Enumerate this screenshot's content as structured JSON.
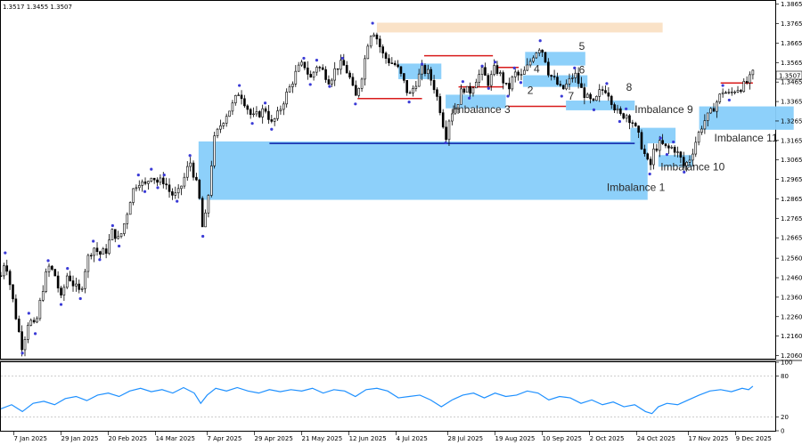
{
  "chart_data": {
    "type": "candlestick",
    "header_values": "1.3517 1.3455 1.3507",
    "current_price": 1.3507,
    "current_price_label": "1.3507",
    "price_axis": {
      "ylim": [
        1.2044,
        1.3882
      ],
      "ticks": [
        "1.3865",
        "1.3765",
        "1.3665",
        "1.3565",
        "1.3465",
        "1.3365",
        "1.3265",
        "1.3165",
        "1.3065",
        "1.2965",
        "1.2865",
        "1.2765",
        "1.2665",
        "1.2560",
        "1.2460",
        "1.2360",
        "1.2260",
        "1.2160",
        "1.2060"
      ]
    },
    "time_axis": {
      "labels": [
        "7 Jan 2025",
        "29 Jan 2025",
        "20 Feb 2025",
        "14 Mar 2025",
        "7 Apr 2025",
        "29 Apr 2025",
        "21 May 2025",
        "12 Jun 2025",
        "4 Jul 2025",
        "28 Jul 2025",
        "19 Aug 2025",
        "10 Sep 2025",
        "2 Oct 2025",
        "24 Oct 2025",
        "17 Nov 2025",
        "9 Dec 2025"
      ],
      "label_days": [
        6,
        28,
        50,
        72,
        96,
        118,
        140,
        162,
        184,
        208,
        230,
        252,
        274,
        296,
        320,
        342
      ],
      "day_range": [
        0,
        360
      ]
    },
    "price_path": [
      [
        0,
        1.247
      ],
      [
        2,
        1.256
      ],
      [
        5,
        1.238
      ],
      [
        8,
        1.22
      ],
      [
        10,
        1.21
      ],
      [
        13,
        1.225
      ],
      [
        16,
        1.22
      ],
      [
        19,
        1.238
      ],
      [
        22,
        1.252
      ],
      [
        25,
        1.248
      ],
      [
        28,
        1.235
      ],
      [
        31,
        1.248
      ],
      [
        34,
        1.242
      ],
      [
        37,
        1.238
      ],
      [
        40,
        1.255
      ],
      [
        43,
        1.262
      ],
      [
        46,
        1.258
      ],
      [
        49,
        1.26
      ],
      [
        52,
        1.27
      ],
      [
        55,
        1.265
      ],
      [
        58,
        1.276
      ],
      [
        61,
        1.29
      ],
      [
        64,
        1.296
      ],
      [
        67,
        1.293
      ],
      [
        70,
        1.299
      ],
      [
        73,
        1.295
      ],
      [
        76,
        1.296
      ],
      [
        79,
        1.289
      ],
      [
        82,
        1.288
      ],
      [
        85,
        1.296
      ],
      [
        88,
        1.306
      ],
      [
        90,
        1.298
      ],
      [
        92,
        1.29
      ],
      [
        94,
        1.27
      ],
      [
        96,
        1.282
      ],
      [
        99,
        1.316
      ],
      [
        102,
        1.324
      ],
      [
        105,
        1.33
      ],
      [
        108,
        1.335
      ],
      [
        111,
        1.342
      ],
      [
        114,
        1.335
      ],
      [
        117,
        1.328
      ],
      [
        120,
        1.33
      ],
      [
        123,
        1.333
      ],
      [
        126,
        1.325
      ],
      [
        129,
        1.33
      ],
      [
        132,
        1.338
      ],
      [
        135,
        1.345
      ],
      [
        138,
        1.353
      ],
      [
        141,
        1.356
      ],
      [
        144,
        1.348
      ],
      [
        147,
        1.355
      ],
      [
        150,
        1.352
      ],
      [
        153,
        1.347
      ],
      [
        156,
        1.354
      ],
      [
        159,
        1.356
      ],
      [
        162,
        1.35
      ],
      [
        165,
        1.338
      ],
      [
        168,
        1.35
      ],
      [
        171,
        1.368
      ],
      [
        173,
        1.374
      ],
      [
        175,
        1.369
      ],
      [
        178,
        1.36
      ],
      [
        181,
        1.357
      ],
      [
        184,
        1.355
      ],
      [
        187,
        1.348
      ],
      [
        190,
        1.339
      ],
      [
        193,
        1.346
      ],
      [
        196,
        1.353
      ],
      [
        199,
        1.351
      ],
      [
        202,
        1.343
      ],
      [
        205,
        1.33
      ],
      [
        207,
        1.318
      ],
      [
        209,
        1.33
      ],
      [
        212,
        1.334
      ],
      [
        215,
        1.344
      ],
      [
        218,
        1.341
      ],
      [
        221,
        1.348
      ],
      [
        224,
        1.352
      ],
      [
        227,
        1.346
      ],
      [
        230,
        1.354
      ],
      [
        233,
        1.349
      ],
      [
        236,
        1.342
      ],
      [
        239,
        1.351
      ],
      [
        242,
        1.349
      ],
      [
        245,
        1.354
      ],
      [
        248,
        1.361
      ],
      [
        251,
        1.365
      ],
      [
        253,
        1.36
      ],
      [
        255,
        1.351
      ],
      [
        258,
        1.347
      ],
      [
        261,
        1.342
      ],
      [
        264,
        1.346
      ],
      [
        267,
        1.351
      ],
      [
        270,
        1.343
      ],
      [
        273,
        1.338
      ],
      [
        276,
        1.335
      ],
      [
        279,
        1.342
      ],
      [
        282,
        1.343
      ],
      [
        285,
        1.335
      ],
      [
        288,
        1.329
      ],
      [
        291,
        1.33
      ],
      [
        294,
        1.326
      ],
      [
        297,
        1.318
      ],
      [
        300,
        1.308
      ],
      [
        302,
        1.302
      ],
      [
        304,
        1.312
      ],
      [
        307,
        1.315
      ],
      [
        310,
        1.312
      ],
      [
        313,
        1.313
      ],
      [
        316,
        1.308
      ],
      [
        318,
        1.303
      ],
      [
        321,
        1.308
      ],
      [
        324,
        1.318
      ],
      [
        327,
        1.326
      ],
      [
        330,
        1.33
      ],
      [
        333,
        1.336
      ],
      [
        336,
        1.342
      ],
      [
        339,
        1.34
      ],
      [
        342,
        1.343
      ],
      [
        345,
        1.344
      ],
      [
        348,
        1.347
      ],
      [
        350,
        1.3507
      ]
    ],
    "zones": [
      {
        "price_top": 1.316,
        "price_bottom": 1.286,
        "day_start": 92,
        "day_end": 301,
        "color": "#87cefa"
      },
      {
        "price_top": 1.34,
        "price_bottom": 1.333,
        "day_start": 207,
        "day_end": 235,
        "color": "#87cefa"
      },
      {
        "price_top": 1.35,
        "price_bottom": 1.344,
        "day_start": 243,
        "day_end": 273,
        "color": "#87cefa"
      },
      {
        "price_top": 1.362,
        "price_bottom": 1.355,
        "day_start": 244,
        "day_end": 272,
        "color": "#87cefa"
      },
      {
        "price_top": 1.356,
        "price_bottom": 1.348,
        "day_start": 185,
        "day_end": 205,
        "color": "#87cefa"
      },
      {
        "price_top": 1.337,
        "price_bottom": 1.332,
        "day_start": 263,
        "day_end": 295,
        "color": "#87cefa"
      },
      {
        "price_top": 1.323,
        "price_bottom": 1.315,
        "day_start": 293,
        "day_end": 314,
        "color": "#87cefa"
      },
      {
        "price_top": 1.309,
        "price_bottom": 1.303,
        "day_start": 306,
        "day_end": 322,
        "color": "#87cefa"
      },
      {
        "price_top": 1.334,
        "price_bottom": 1.322,
        "day_start": 325,
        "day_end": 369,
        "color": "#87cefa"
      },
      {
        "price_top": 1.377,
        "price_bottom": 1.372,
        "day_start": 175,
        "day_end": 308,
        "color": "#fae0c4"
      }
    ],
    "levels": [
      {
        "price": 1.315,
        "day_start": 125,
        "day_end": 295,
        "color": "#0b1fa8"
      },
      {
        "price": 1.338,
        "day_start": 166,
        "day_end": 196,
        "color": "#d81b1b"
      },
      {
        "price": 1.36,
        "day_start": 197,
        "day_end": 229,
        "color": "#d81b1b"
      },
      {
        "price": 1.354,
        "day_start": 231,
        "day_end": 241,
        "color": "#d81b1b"
      },
      {
        "price": 1.344,
        "day_start": 213,
        "day_end": 234,
        "color": "#d81b1b"
      },
      {
        "price": 1.334,
        "day_start": 236,
        "day_end": 263,
        "color": "#d81b1b"
      },
      {
        "price": 1.346,
        "day_start": 335,
        "day_end": 350,
        "color": "#d81b1b"
      }
    ],
    "zone_labels": [
      {
        "text": "Imbalance 1",
        "day": 282,
        "price": 1.2905
      },
      {
        "text": "Imbalance 3",
        "day": 210,
        "price": 1.3305
      },
      {
        "text": "Imbalance 9",
        "day": 295,
        "price": 1.3305
      },
      {
        "text": "Imbalance 10",
        "day": 307,
        "price": 1.301
      },
      {
        "text": "Imbalance 11",
        "day": 332,
        "price": 1.316
      }
    ],
    "number_labels": [
      {
        "text": "5",
        "day": 269,
        "price": 1.363
      },
      {
        "text": "6",
        "day": 269,
        "price": 1.351
      },
      {
        "text": "8",
        "day": 291,
        "price": 1.342
      },
      {
        "text": "4",
        "day": 248,
        "price": 1.3515
      },
      {
        "text": "2",
        "day": 245,
        "price": 1.3405
      },
      {
        "text": "7",
        "day": 264,
        "price": 1.3375
      }
    ],
    "oscillator": {
      "ticks": [
        "100",
        "80",
        "20",
        "0"
      ],
      "range": [
        0,
        100
      ],
      "values": [
        [
          0,
          32
        ],
        [
          5,
          38
        ],
        [
          10,
          28
        ],
        [
          15,
          40
        ],
        [
          20,
          43
        ],
        [
          25,
          38
        ],
        [
          30,
          47
        ],
        [
          35,
          50
        ],
        [
          40,
          44
        ],
        [
          45,
          52
        ],
        [
          50,
          55
        ],
        [
          55,
          50
        ],
        [
          60,
          58
        ],
        [
          65,
          62
        ],
        [
          70,
          57
        ],
        [
          75,
          60
        ],
        [
          80,
          55
        ],
        [
          85,
          63
        ],
        [
          90,
          55
        ],
        [
          93,
          40
        ],
        [
          96,
          52
        ],
        [
          100,
          62
        ],
        [
          105,
          58
        ],
        [
          110,
          63
        ],
        [
          115,
          58
        ],
        [
          120,
          55
        ],
        [
          125,
          60
        ],
        [
          130,
          57
        ],
        [
          135,
          60
        ],
        [
          140,
          58
        ],
        [
          145,
          62
        ],
        [
          150,
          55
        ],
        [
          155,
          60
        ],
        [
          160,
          58
        ],
        [
          165,
          50
        ],
        [
          170,
          60
        ],
        [
          175,
          62
        ],
        [
          180,
          58
        ],
        [
          185,
          48
        ],
        [
          190,
          50
        ],
        [
          195,
          52
        ],
        [
          200,
          45
        ],
        [
          205,
          35
        ],
        [
          210,
          45
        ],
        [
          215,
          52
        ],
        [
          220,
          55
        ],
        [
          225,
          48
        ],
        [
          230,
          55
        ],
        [
          235,
          50
        ],
        [
          240,
          52
        ],
        [
          245,
          58
        ],
        [
          250,
          55
        ],
        [
          255,
          45
        ],
        [
          260,
          50
        ],
        [
          265,
          48
        ],
        [
          270,
          40
        ],
        [
          275,
          45
        ],
        [
          280,
          38
        ],
        [
          285,
          42
        ],
        [
          290,
          35
        ],
        [
          295,
          38
        ],
        [
          300,
          28
        ],
        [
          303,
          25
        ],
        [
          306,
          35
        ],
        [
          310,
          40
        ],
        [
          315,
          38
        ],
        [
          320,
          45
        ],
        [
          325,
          52
        ],
        [
          330,
          58
        ],
        [
          335,
          60
        ],
        [
          340,
          57
        ],
        [
          345,
          62
        ],
        [
          348,
          60
        ],
        [
          350,
          65
        ]
      ]
    }
  }
}
